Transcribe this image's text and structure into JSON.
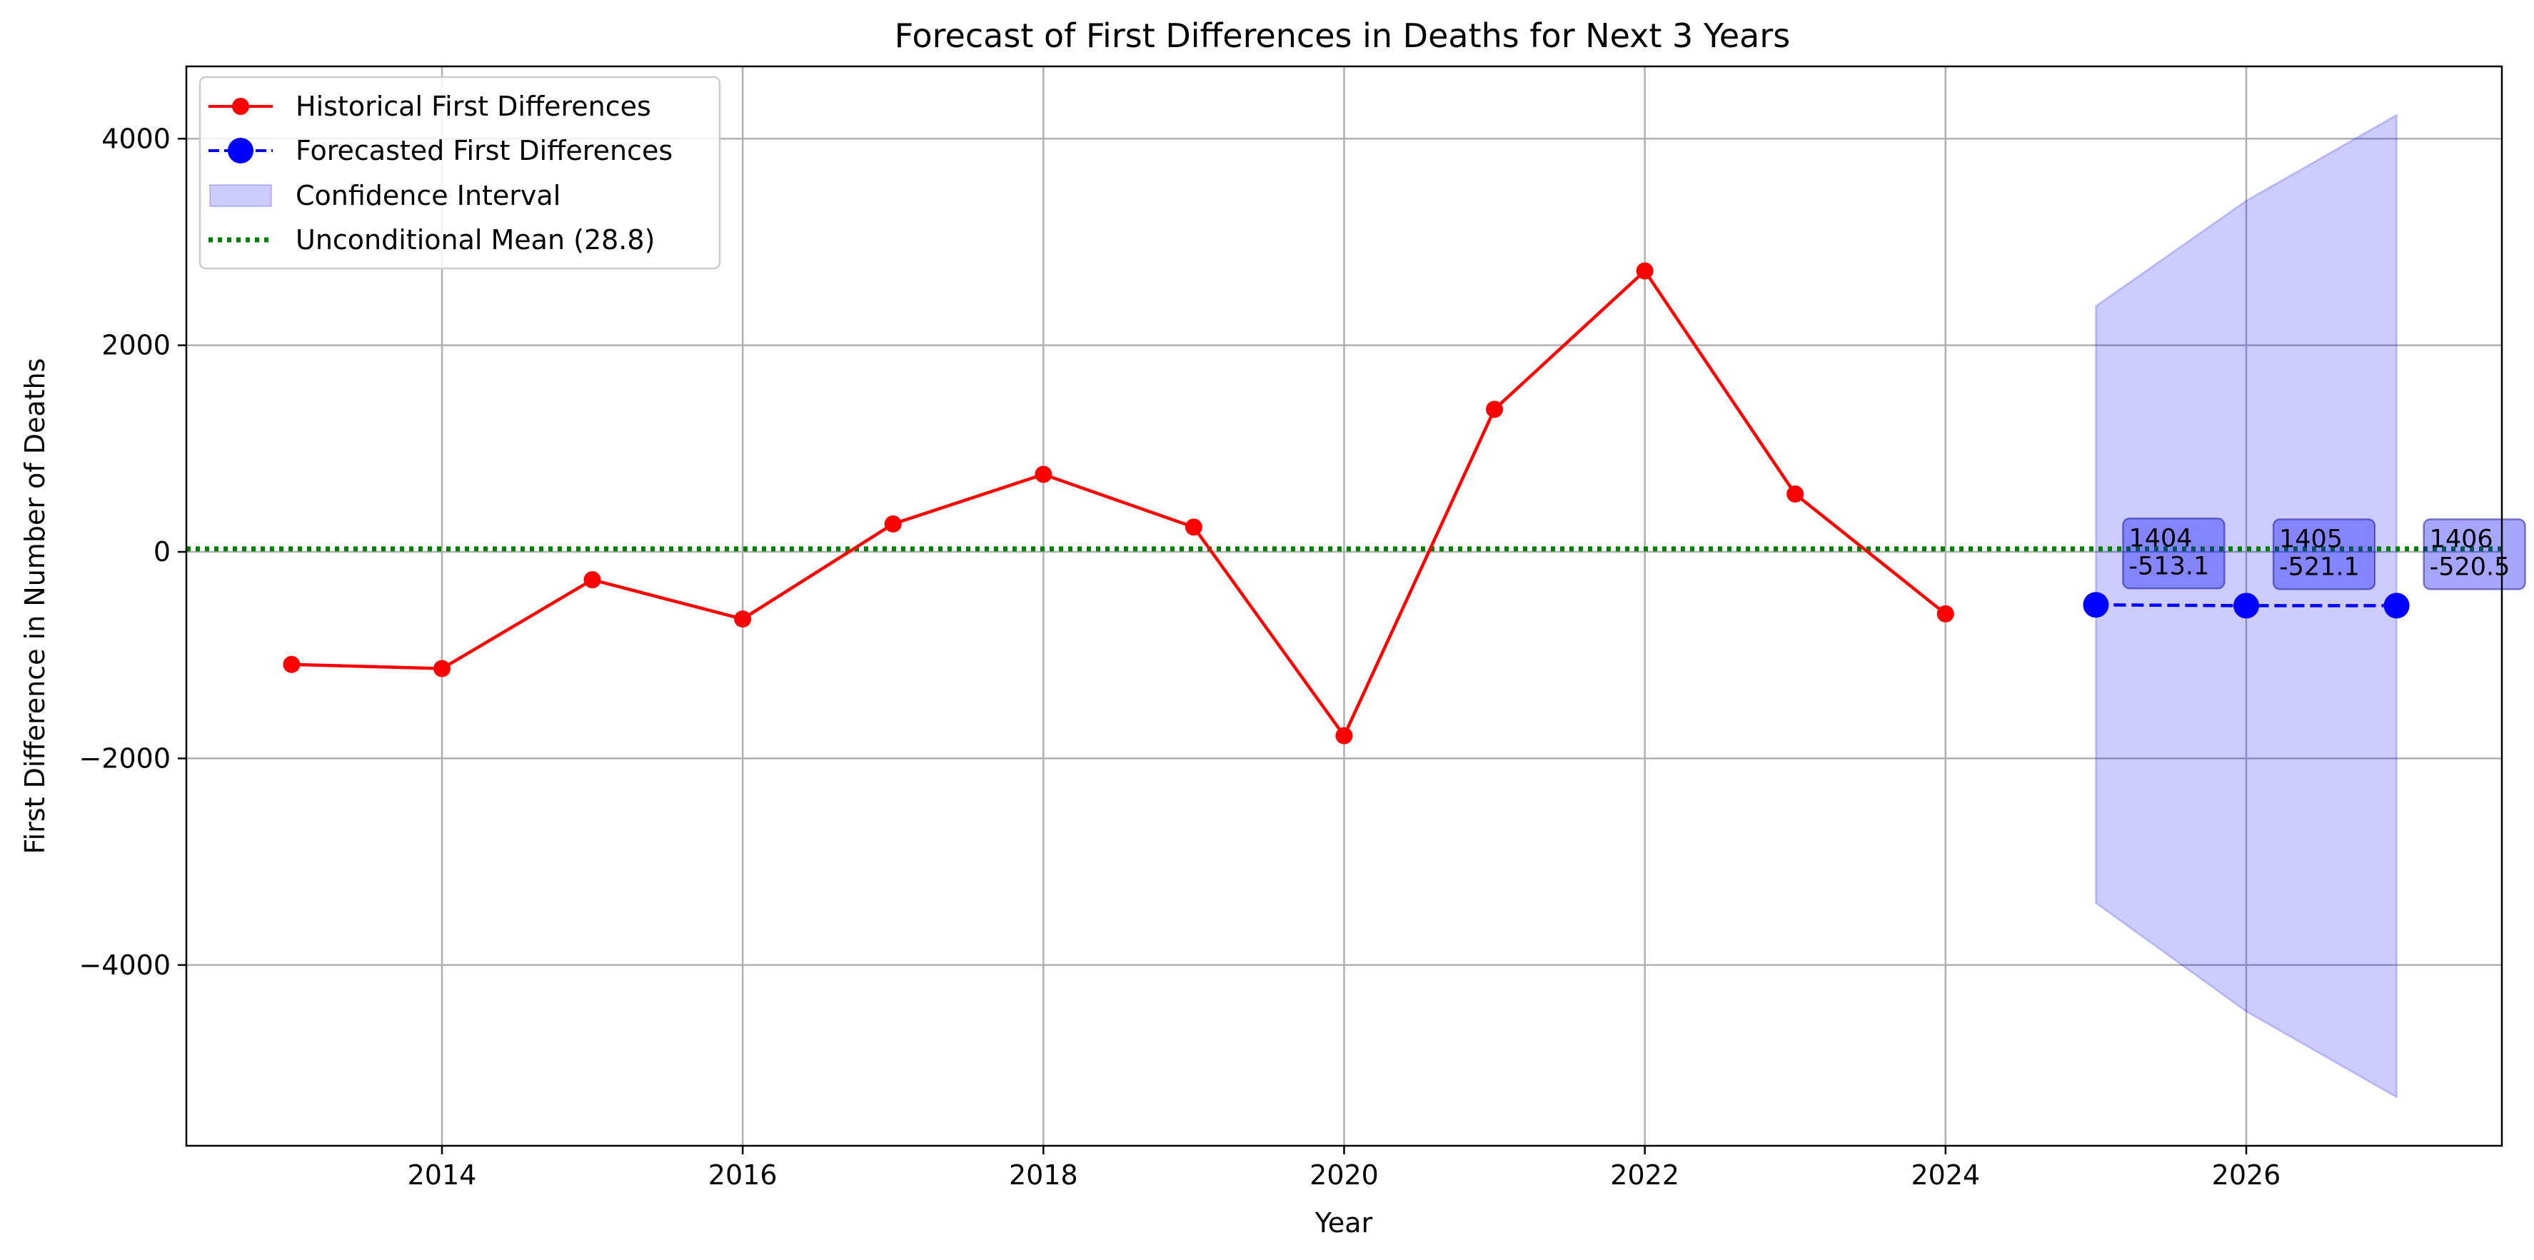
{
  "chart_data": {
    "type": "line",
    "title": "Forecast of First Differences in Deaths for Next 3 Years",
    "xlabel": "Year",
    "ylabel": "First Difference in Number of Deaths",
    "xlim": [
      2012.3,
      2027.7
    ],
    "ylim": [
      -5750,
      4700
    ],
    "xticks": [
      2014,
      2016,
      2018,
      2020,
      2022,
      2024,
      2026
    ],
    "yticks": [
      -4000,
      -2000,
      0,
      2000,
      4000
    ],
    "grid": true,
    "legend_position": "upper-left",
    "series": [
      {
        "name": "Historical First Differences",
        "color": "#ff0000",
        "line_style": "solid",
        "marker": "circle",
        "x": [
          2013,
          2014,
          2015,
          2016,
          2017,
          2018,
          2019,
          2020,
          2021,
          2022,
          2023,
          2024
        ],
        "y": [
          -1090,
          -1130,
          -270,
          -650,
          270,
          750,
          240,
          -1780,
          1380,
          2720,
          560,
          -600
        ]
      },
      {
        "name": "Forecasted First Differences",
        "color": "#0000ff",
        "line_style": "dashed",
        "marker": "circle",
        "x": [
          2025,
          2026,
          2027
        ],
        "y": [
          -513.1,
          -521.1,
          -520.5
        ]
      }
    ],
    "confidence_interval": {
      "name": "Confidence Interval",
      "color": "#0000ff",
      "opacity": 0.2,
      "x": [
        2025,
        2026,
        2027
      ],
      "lower": [
        -3400,
        -4450,
        -5280
      ],
      "upper": [
        2380,
        3400,
        4230
      ]
    },
    "reference_line": {
      "name": "Unconditional Mean (28.8)",
      "value": 28.8,
      "color": "#008000",
      "line_style": "dotted"
    },
    "annotations": [
      {
        "x": 2025,
        "y": -513.1,
        "line1": "1404",
        "line2": "-513.1"
      },
      {
        "x": 2026,
        "y": -521.1,
        "line1": "1405",
        "line2": "-521.1"
      },
      {
        "x": 2027,
        "y": -520.5,
        "line1": "1406",
        "line2": "-520.5"
      }
    ]
  }
}
